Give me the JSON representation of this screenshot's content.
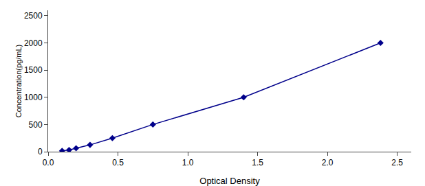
{
  "chart_data": {
    "type": "line",
    "xlabel": "Optical Density",
    "ylabel": "Concentration(pg/mL)",
    "x": [
      0.1,
      0.15,
      0.2,
      0.3,
      0.46,
      0.75,
      1.4,
      2.38
    ],
    "values": [
      15.6,
      31.2,
      62.5,
      125,
      250,
      500,
      1000,
      2000
    ],
    "color": "#00008B",
    "marker": "diamond",
    "line_style": "solid",
    "xlim": [
      0,
      2.6
    ],
    "ylim": [
      0,
      2600
    ],
    "xticks": [
      {
        "value": 0,
        "label": "0.0"
      },
      0.5,
      {
        "value": 1,
        "label": "1.0"
      },
      1.5,
      {
        "value": 2,
        "label": "2.0"
      },
      2.5
    ],
    "yticks": [
      0,
      500,
      1000,
      1500,
      2000,
      2500
    ],
    "grid": false
  }
}
